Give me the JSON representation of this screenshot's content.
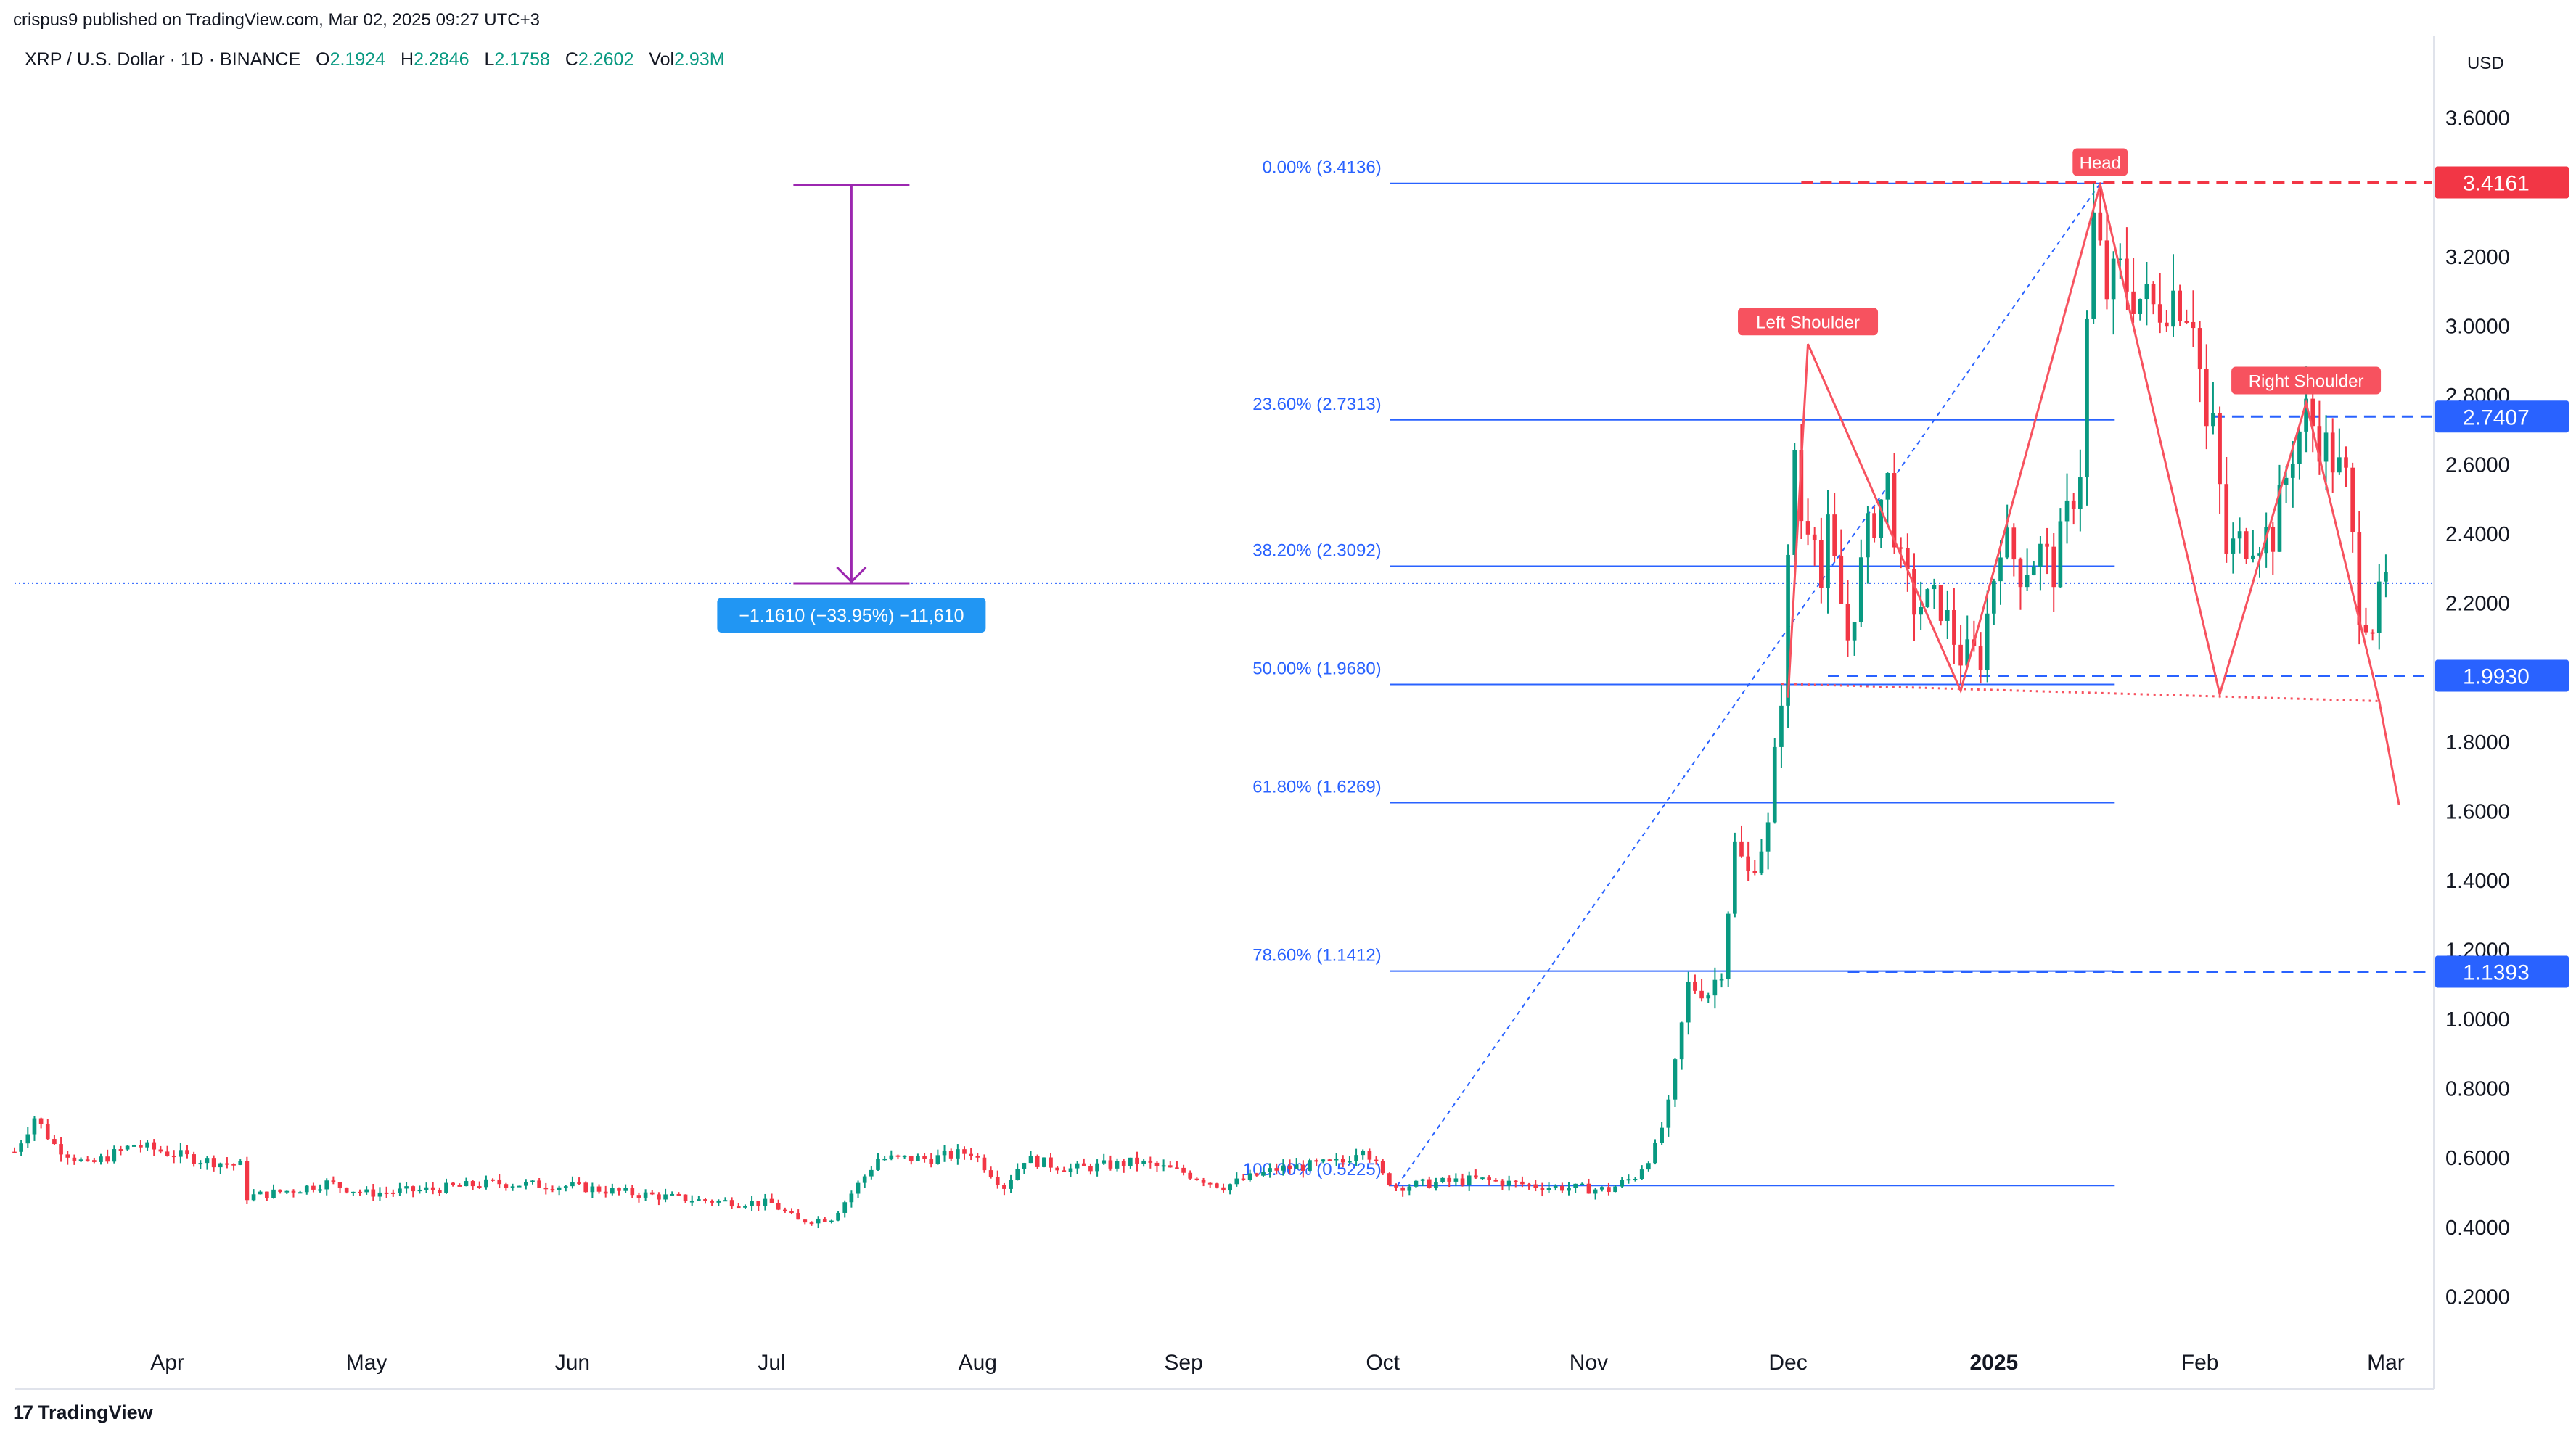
{
  "header": {
    "publisher": "crispus9 published on TradingView.com, Mar 02, 2025 09:27 UTC+3",
    "symbol": "XRP / U.S. Dollar · 1D · BINANCE",
    "open_label": "O",
    "open": "2.1924",
    "high_label": "H",
    "high": "2.2846",
    "low_label": "L",
    "low": "2.1758",
    "close_label": "C",
    "close": "2.2602",
    "vol_label": "Vol",
    "vol": "2.93M"
  },
  "brand": {
    "logo": "17",
    "name": "TradingView"
  },
  "chart_data": {
    "type": "candlestick",
    "currency": "USD",
    "y_range": [
      0.05,
      3.75
    ],
    "y_ticks": [
      "3.6000",
      "3.2000",
      "3.0000",
      "2.8000",
      "2.6000",
      "2.4000",
      "2.2000",
      "1.8000",
      "1.6000",
      "1.4000",
      "1.2000",
      "1.0000",
      "0.8000",
      "0.6000",
      "0.4000",
      "0.2000"
    ],
    "y_tick_values": [
      3.6,
      3.2,
      3.0,
      2.8,
      2.6,
      2.4,
      2.2,
      1.8,
      1.6,
      1.4,
      1.2,
      1.0,
      0.8,
      0.6,
      0.4,
      0.2
    ],
    "x_range": [
      "2024-03-09",
      "2025-03-08"
    ],
    "x_ticks": [
      {
        "label": "Apr",
        "date": "2024-04-01",
        "bold": false
      },
      {
        "label": "May",
        "date": "2024-05-01",
        "bold": false
      },
      {
        "label": "Jun",
        "date": "2024-06-01",
        "bold": false
      },
      {
        "label": "Jul",
        "date": "2024-07-01",
        "bold": false
      },
      {
        "label": "Aug",
        "date": "2024-08-01",
        "bold": false
      },
      {
        "label": "Sep",
        "date": "2024-09-01",
        "bold": false
      },
      {
        "label": "Oct",
        "date": "2024-10-01",
        "bold": false
      },
      {
        "label": "Nov",
        "date": "2024-11-01",
        "bold": false
      },
      {
        "label": "Dec",
        "date": "2024-12-01",
        "bold": false
      },
      {
        "label": "2025",
        "date": "2025-01-01",
        "bold": true
      },
      {
        "label": "Feb",
        "date": "2025-02-01",
        "bold": false
      },
      {
        "label": "Mar",
        "date": "2025-03-01",
        "bold": false
      }
    ],
    "price_keypoints": [
      [
        "2024-03-09",
        0.62
      ],
      [
        "2024-03-12",
        0.72
      ],
      [
        "2024-03-15",
        0.64
      ],
      [
        "2024-03-20",
        0.58
      ],
      [
        "2024-03-27",
        0.64
      ],
      [
        "2024-04-05",
        0.6
      ],
      [
        "2024-04-12",
        0.58
      ],
      [
        "2024-04-13",
        0.49
      ],
      [
        "2024-04-20",
        0.51
      ],
      [
        "2024-04-25",
        0.53
      ],
      [
        "2024-05-01",
        0.5
      ],
      [
        "2024-05-10",
        0.51
      ],
      [
        "2024-05-20",
        0.53
      ],
      [
        "2024-06-01",
        0.52
      ],
      [
        "2024-06-10",
        0.5
      ],
      [
        "2024-06-20",
        0.48
      ],
      [
        "2024-07-01",
        0.47
      ],
      [
        "2024-07-05",
        0.42
      ],
      [
        "2024-07-10",
        0.43
      ],
      [
        "2024-07-13",
        0.5
      ],
      [
        "2024-07-17",
        0.6
      ],
      [
        "2024-07-25",
        0.6
      ],
      [
        "2024-07-31",
        0.62
      ],
      [
        "2024-08-05",
        0.52
      ],
      [
        "2024-08-08",
        0.6
      ],
      [
        "2024-08-15",
        0.57
      ],
      [
        "2024-08-25",
        0.59
      ],
      [
        "2024-09-01",
        0.56
      ],
      [
        "2024-09-07",
        0.52
      ],
      [
        "2024-09-15",
        0.57
      ],
      [
        "2024-09-25",
        0.59
      ],
      [
        "2024-09-28",
        0.64
      ],
      [
        "2024-10-01",
        0.55
      ],
      [
        "2024-10-03",
        0.52
      ],
      [
        "2024-10-15",
        0.54
      ],
      [
        "2024-10-25",
        0.52
      ],
      [
        "2024-11-04",
        0.51
      ],
      [
        "2024-11-08",
        0.55
      ],
      [
        "2024-11-11",
        0.63
      ],
      [
        "2024-11-13",
        0.75
      ],
      [
        "2024-11-16",
        1.1
      ],
      [
        "2024-11-19",
        1.08
      ],
      [
        "2024-11-21",
        1.15
      ],
      [
        "2024-11-23",
        1.5
      ],
      [
        "2024-11-25",
        1.42
      ],
      [
        "2024-11-28",
        1.55
      ],
      [
        "2024-11-30",
        1.95
      ],
      [
        "2024-12-02",
        2.65
      ],
      [
        "2024-12-03",
        2.45
      ],
      [
        "2024-12-05",
        2.45
      ],
      [
        "2024-12-06",
        2.25
      ],
      [
        "2024-12-07",
        2.4
      ],
      [
        "2024-12-10",
        2.1
      ],
      [
        "2024-12-13",
        2.4
      ],
      [
        "2024-12-16",
        2.55
      ],
      [
        "2024-12-18",
        2.3
      ],
      [
        "2024-12-20",
        2.2
      ],
      [
        "2024-12-24",
        2.2
      ],
      [
        "2024-12-27",
        2.05
      ],
      [
        "2024-12-30",
        2.05
      ],
      [
        "2025-01-02",
        2.4
      ],
      [
        "2025-01-05",
        2.3
      ],
      [
        "2025-01-08",
        2.35
      ],
      [
        "2025-01-10",
        2.3
      ],
      [
        "2025-01-12",
        2.45
      ],
      [
        "2025-01-14",
        2.6
      ],
      [
        "2025-01-15",
        3.0
      ],
      [
        "2025-01-16",
        3.3
      ],
      [
        "2025-01-18",
        3.1
      ],
      [
        "2025-01-20",
        3.15
      ],
      [
        "2025-01-22",
        3.1
      ],
      [
        "2025-01-25",
        3.05
      ],
      [
        "2025-01-28",
        3.1
      ],
      [
        "2025-01-31",
        3.05
      ],
      [
        "2025-02-02",
        2.7
      ],
      [
        "2025-02-03",
        2.7
      ],
      [
        "2025-02-05",
        2.35
      ],
      [
        "2025-02-09",
        2.4
      ],
      [
        "2025-02-12",
        2.4
      ],
      [
        "2025-02-15",
        2.65
      ],
      [
        "2025-02-17",
        2.75
      ],
      [
        "2025-02-20",
        2.65
      ],
      [
        "2025-02-23",
        2.55
      ],
      [
        "2025-02-25",
        2.2
      ],
      [
        "2025-02-27",
        2.15
      ],
      [
        "2025-03-01",
        2.26
      ]
    ],
    "fibonacci": [
      {
        "label": "0.00% (3.4136)",
        "price": 3.4136
      },
      {
        "label": "23.60% (2.7313)",
        "price": 2.7313
      },
      {
        "label": "38.20% (2.3092)",
        "price": 2.3092
      },
      {
        "label": "50.00% (1.9680)",
        "price": 1.968
      },
      {
        "label": "61.80% (1.6269)",
        "price": 1.6269
      },
      {
        "label": "78.60% (1.1412)",
        "price": 1.1412
      },
      {
        "label": "100.00% (0.5225)",
        "price": 0.5225
      }
    ],
    "fib_range": [
      "2024-10-01",
      "2025-01-17"
    ],
    "price_markers": [
      {
        "label": "3.4161",
        "price": 3.4161,
        "color": "#f23645",
        "from": "2024-12-03"
      },
      {
        "label": "2.7407",
        "price": 2.7407,
        "color": "#2962ff",
        "from": "2025-02-03"
      },
      {
        "label": "1.9930",
        "price": 1.993,
        "color": "#2962ff",
        "from": "2024-12-07"
      },
      {
        "label": "1.1393",
        "price": 1.1393,
        "color": "#2962ff",
        "from": "2024-12-10"
      }
    ],
    "pattern_labels": [
      {
        "text": "Left Shoulder",
        "date": "2024-12-04",
        "price": 2.95
      },
      {
        "text": "Head",
        "date": "2025-01-17",
        "price": 3.41
      },
      {
        "text": "Right Shoulder",
        "date": "2025-02-17",
        "price": 2.78
      }
    ],
    "pattern_path": [
      [
        "2024-12-01",
        1.93
      ],
      [
        "2024-12-04",
        2.95
      ],
      [
        "2024-12-27",
        1.95
      ],
      [
        "2025-01-17",
        3.41
      ],
      [
        "2025-02-04",
        1.94
      ],
      [
        "2025-02-17",
        2.78
      ],
      [
        "2025-02-28",
        1.92
      ],
      [
        "2025-03-03",
        1.62
      ]
    ],
    "neckline": [
      [
        "2024-11-30",
        1.97
      ],
      [
        "2025-02-28",
        1.92
      ]
    ],
    "trend_dashed": [
      [
        "2024-10-01",
        0.5225
      ],
      [
        "2025-01-17",
        3.4136
      ]
    ],
    "current_price": 2.2602,
    "measure": {
      "label": "−1.1610 (−33.95%) −11,610",
      "date": "2024-07-13",
      "from_price": 3.41,
      "to_price": 2.26,
      "color": "#9c27b0",
      "label_bg": "#2196f3"
    },
    "colors": {
      "up": "#089981",
      "down": "#f23645",
      "blue": "#2962ff",
      "pattern": "#f7525f",
      "fib": "#2962ff"
    }
  }
}
